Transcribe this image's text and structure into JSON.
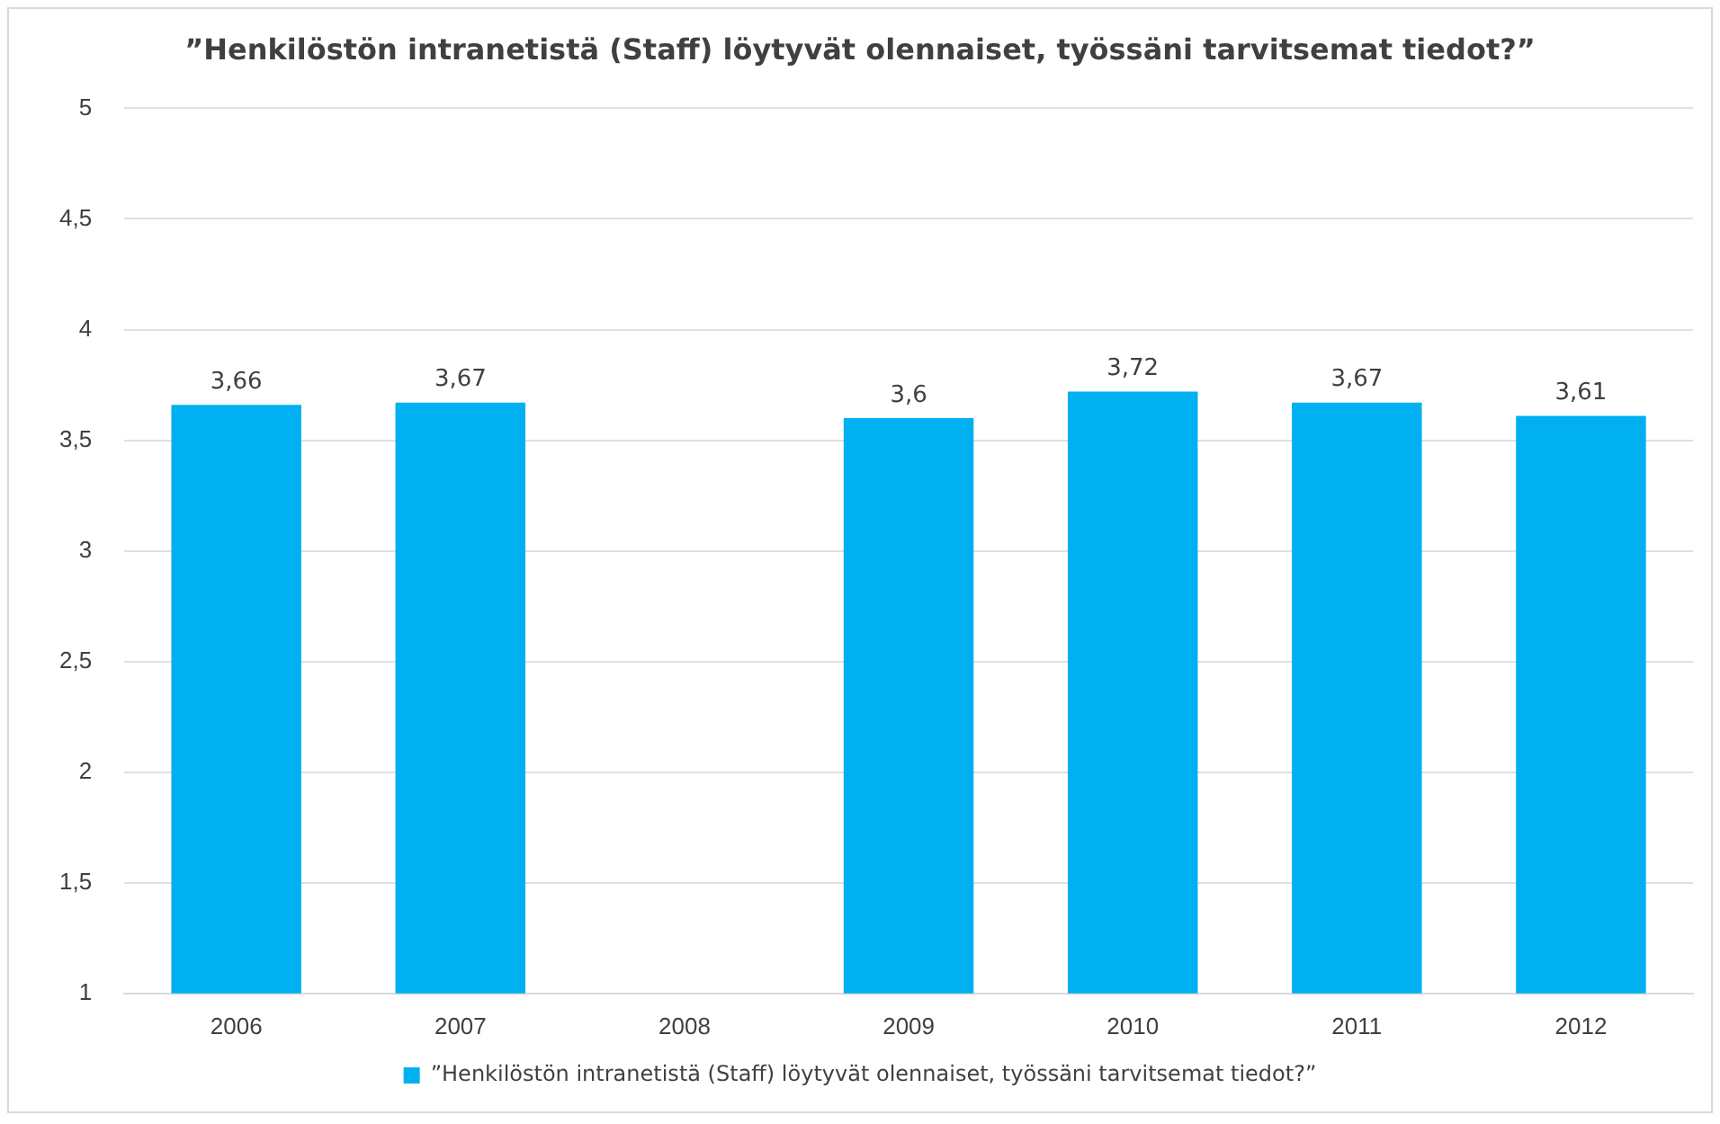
{
  "chart_data": {
    "type": "bar",
    "title": "”Henkilöstön intranetistä (Staff) löytyvät olennaiset, työssäni tarvitsemat tiedot?”",
    "categories": [
      "2006",
      "2007",
      "2008",
      "2009",
      "2010",
      "2011",
      "2012"
    ],
    "series": [
      {
        "name": "”Henkilöstön intranetistä (Staff) löytyvät olennaiset, työssäni tarvitsemat tiedot?”",
        "color": "#00b0f0",
        "values": [
          3.66,
          3.67,
          null,
          3.6,
          3.72,
          3.67,
          3.61
        ],
        "value_labels": [
          "3,66",
          "3,67",
          null,
          "3,6",
          "3,72",
          "3,67",
          "3,61"
        ]
      }
    ],
    "ylim": [
      1,
      5
    ],
    "yticks": [
      {
        "value": 1,
        "label": "1"
      },
      {
        "value": 1.5,
        "label": "1,5"
      },
      {
        "value": 2,
        "label": "2"
      },
      {
        "value": 2.5,
        "label": "2,5"
      },
      {
        "value": 3,
        "label": "3"
      },
      {
        "value": 3.5,
        "label": "3,5"
      },
      {
        "value": 4,
        "label": "4"
      },
      {
        "value": 4.5,
        "label": "4,5"
      },
      {
        "value": 5,
        "label": "5"
      }
    ],
    "grid": "y",
    "legend": "bottom"
  }
}
